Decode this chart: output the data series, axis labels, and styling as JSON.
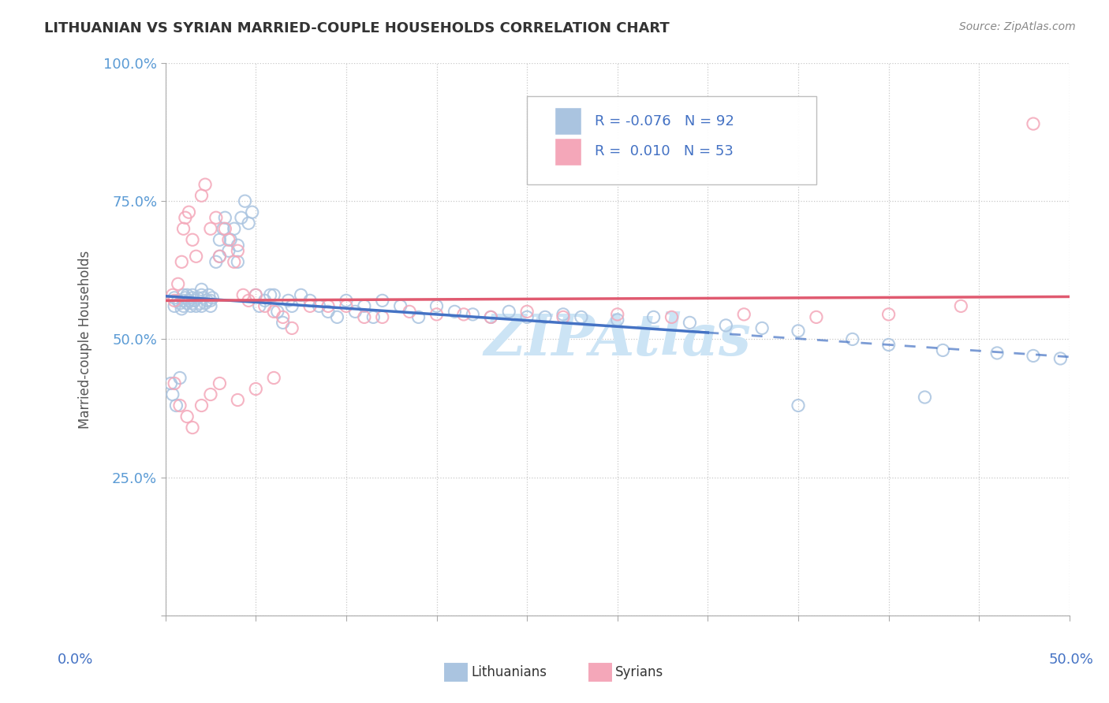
{
  "title": "LITHUANIAN VS SYRIAN MARRIED-COUPLE HOUSEHOLDS CORRELATION CHART",
  "source": "Source: ZipAtlas.com",
  "ylabel": "Married-couple Households",
  "yticks": [
    0.0,
    0.25,
    0.5,
    0.75,
    1.0
  ],
  "ytick_labels": [
    "",
    "25.0%",
    "50.0%",
    "75.0%",
    "100.0%"
  ],
  "xlim": [
    0.0,
    0.5
  ],
  "ylim": [
    0.0,
    1.0
  ],
  "legend_R_lit": "-0.076",
  "legend_N_lit": "92",
  "legend_R_syr": "0.010",
  "legend_N_syr": "53",
  "color_lit": "#aac4e0",
  "color_syr": "#f4a7b9",
  "trend_color_lit": "#4472c4",
  "trend_color_syr": "#e05a70",
  "background_color": "#ffffff",
  "watermark_color": "#cce4f5",
  "lit_x": [
    0.005,
    0.005,
    0.007,
    0.008,
    0.009,
    0.01,
    0.01,
    0.01,
    0.011,
    0.012,
    0.012,
    0.013,
    0.014,
    0.015,
    0.015,
    0.015,
    0.016,
    0.017,
    0.018,
    0.019,
    0.02,
    0.02,
    0.02,
    0.021,
    0.022,
    0.023,
    0.024,
    0.025,
    0.025,
    0.026,
    0.028,
    0.03,
    0.03,
    0.032,
    0.033,
    0.035,
    0.036,
    0.038,
    0.04,
    0.04,
    0.042,
    0.044,
    0.046,
    0.048,
    0.05,
    0.052,
    0.055,
    0.058,
    0.06,
    0.062,
    0.065,
    0.068,
    0.07,
    0.075,
    0.08,
    0.085,
    0.09,
    0.095,
    0.1,
    0.105,
    0.11,
    0.115,
    0.12,
    0.13,
    0.14,
    0.15,
    0.16,
    0.17,
    0.18,
    0.19,
    0.2,
    0.21,
    0.22,
    0.23,
    0.25,
    0.27,
    0.29,
    0.31,
    0.33,
    0.35,
    0.38,
    0.4,
    0.43,
    0.46,
    0.48,
    0.495,
    0.003,
    0.004,
    0.006,
    0.008,
    0.35,
    0.42
  ],
  "lit_y": [
    0.575,
    0.56,
    0.57,
    0.565,
    0.555,
    0.57,
    0.58,
    0.56,
    0.575,
    0.565,
    0.58,
    0.57,
    0.56,
    0.575,
    0.565,
    0.58,
    0.57,
    0.56,
    0.575,
    0.565,
    0.58,
    0.59,
    0.56,
    0.575,
    0.565,
    0.57,
    0.58,
    0.57,
    0.56,
    0.575,
    0.64,
    0.68,
    0.65,
    0.7,
    0.72,
    0.66,
    0.68,
    0.7,
    0.67,
    0.64,
    0.72,
    0.75,
    0.71,
    0.73,
    0.58,
    0.56,
    0.57,
    0.58,
    0.58,
    0.55,
    0.53,
    0.57,
    0.56,
    0.58,
    0.57,
    0.56,
    0.55,
    0.54,
    0.57,
    0.55,
    0.56,
    0.54,
    0.57,
    0.56,
    0.54,
    0.56,
    0.55,
    0.545,
    0.54,
    0.55,
    0.54,
    0.54,
    0.545,
    0.54,
    0.535,
    0.54,
    0.53,
    0.525,
    0.52,
    0.515,
    0.5,
    0.49,
    0.48,
    0.475,
    0.47,
    0.465,
    0.42,
    0.4,
    0.38,
    0.43,
    0.38,
    0.395
  ],
  "syr_x": [
    0.004,
    0.005,
    0.007,
    0.009,
    0.01,
    0.011,
    0.013,
    0.015,
    0.017,
    0.02,
    0.022,
    0.025,
    0.028,
    0.03,
    0.033,
    0.035,
    0.038,
    0.04,
    0.043,
    0.046,
    0.05,
    0.055,
    0.06,
    0.065,
    0.07,
    0.08,
    0.09,
    0.1,
    0.11,
    0.12,
    0.135,
    0.15,
    0.165,
    0.18,
    0.2,
    0.22,
    0.25,
    0.28,
    0.32,
    0.36,
    0.4,
    0.44,
    0.48,
    0.005,
    0.008,
    0.012,
    0.015,
    0.02,
    0.025,
    0.03,
    0.04,
    0.05,
    0.06
  ],
  "syr_y": [
    0.58,
    0.57,
    0.6,
    0.64,
    0.7,
    0.72,
    0.73,
    0.68,
    0.65,
    0.76,
    0.78,
    0.7,
    0.72,
    0.65,
    0.7,
    0.68,
    0.64,
    0.66,
    0.58,
    0.57,
    0.58,
    0.56,
    0.55,
    0.54,
    0.52,
    0.56,
    0.56,
    0.56,
    0.54,
    0.54,
    0.55,
    0.545,
    0.545,
    0.54,
    0.55,
    0.54,
    0.545,
    0.54,
    0.545,
    0.54,
    0.545,
    0.56,
    0.89,
    0.42,
    0.38,
    0.36,
    0.34,
    0.38,
    0.4,
    0.42,
    0.39,
    0.41,
    0.43
  ],
  "trend_lit_x0": 0.0,
  "trend_lit_y0": 0.578,
  "trend_lit_x1": 0.5,
  "trend_lit_y1": 0.468,
  "trend_lit_solid_end": 0.3,
  "trend_syr_x0": 0.0,
  "trend_syr_y0": 0.57,
  "trend_syr_x1": 0.5,
  "trend_syr_y1": 0.577
}
